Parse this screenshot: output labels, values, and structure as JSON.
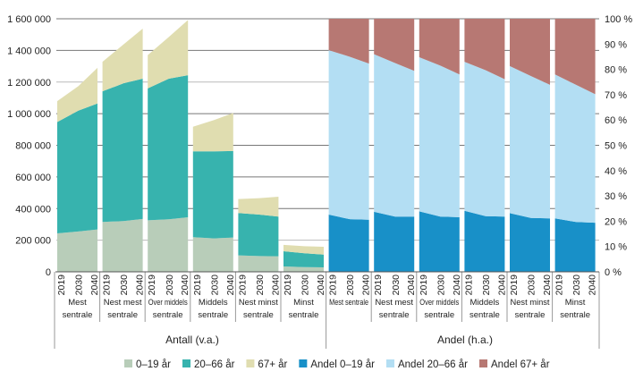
{
  "chart_data": {
    "type": "area",
    "years": [
      "2019",
      "2030",
      "2040"
    ],
    "groups": [
      "Mest sentrale",
      "Nest mest sentrale",
      "Over middels sentrale",
      "Middels sentrale",
      "Nest minst sentrale",
      "Minst sentrale"
    ],
    "group_label_lines": [
      [
        "Mest",
        "sentrale"
      ],
      [
        "Nest mest",
        "sentrale"
      ],
      [
        "Over middels",
        "sentrale"
      ],
      [
        "Middels",
        "sentrale"
      ],
      [
        "Nest minst",
        "sentrale"
      ],
      [
        "Minst",
        "sentrale"
      ]
    ],
    "group_label_lines_right": [
      [
        "Mest sentrale",
        ""
      ],
      [
        "Nest mest",
        "sentrale"
      ],
      [
        "Over middels",
        "sentrale"
      ],
      [
        "Middels",
        "sentrale"
      ],
      [
        "Nest minst",
        "sentrale"
      ],
      [
        "Minst",
        "sentrale"
      ]
    ],
    "panels": [
      {
        "label": "Antall (v.a.)",
        "axis": "left",
        "ylim": [
          0,
          1600000
        ],
        "yticks": [
          "0",
          "200 000",
          "400 000",
          "600 000",
          "800 000",
          "1 000 000",
          "1 200 000",
          "1 400 000",
          "1 600 000"
        ],
        "series": [
          {
            "name": "0–19 år",
            "color": "#b8cdb9",
            "values": [
              [
                243000,
                255000,
                268000
              ],
              [
                315000,
                321000,
                334000
              ],
              [
                326000,
                332000,
                345000
              ],
              [
                219000,
                211000,
                217000
              ],
              [
                104000,
                100000,
                98000
              ],
              [
                34000,
                30000,
                28000
              ]
            ]
          },
          {
            "name": "20–66 år",
            "color": "#37b3ae",
            "values": [
              [
                704000,
                764000,
                796000
              ],
              [
                826000,
                871000,
                887000
              ],
              [
                834000,
                889000,
                898000
              ],
              [
                543000,
                551000,
                547000
              ],
              [
                268000,
                262000,
                251000
              ],
              [
                96000,
                87000,
                81000
              ]
            ]
          },
          {
            "name": "67+ år",
            "color": "#e0ddb0",
            "values": [
              [
                132000,
                155000,
                226000
              ],
              [
                187000,
                246000,
                317000
              ],
              [
                210000,
                264000,
                349000
              ],
              [
                155000,
                198000,
                240000
              ],
              [
                88000,
                104000,
                126000
              ],
              [
                40000,
                45000,
                49000
              ]
            ]
          }
        ]
      },
      {
        "label": "Andel (h.a.)",
        "axis": "right",
        "ylim": [
          0,
          100
        ],
        "yticks": [
          "0 %",
          "10 %",
          "20 %",
          "30 %",
          "40 %",
          "50 %",
          "60 %",
          "70 %",
          "80 %",
          "90 %",
          "100 %"
        ],
        "series": [
          {
            "name": "Andel 0–19 år",
            "color": "#1890c8",
            "values": [
              [
                22.6,
                20.8,
                20.6
              ],
              [
                23.7,
                21.8,
                21.8
              ],
              [
                23.9,
                21.8,
                21.6
              ],
              [
                24.1,
                22.0,
                21.8
              ],
              [
                23.2,
                21.3,
                21.1
              ],
              [
                21.1,
                19.7,
                19.4
              ]
            ]
          },
          {
            "name": "Andel 20–66 år",
            "color": "#b3def3",
            "values": [
              [
                65.0,
                64.2,
                61.7
              ],
              [
                62.3,
                60.7,
                57.6
              ],
              [
                60.9,
                59.7,
                56.4
              ],
              [
                58.9,
                57.7,
                54.3
              ],
              [
                58.1,
                56.1,
                52.8
              ],
              [
                56.9,
                54.2,
                50.8
              ]
            ]
          },
          {
            "name": "Andel 67+ år",
            "color": "#b77873",
            "values": [
              [
                12.4,
                15.0,
                17.7
              ],
              [
                14.0,
                17.5,
                20.6
              ],
              [
                15.2,
                18.5,
                22.0
              ],
              [
                17.0,
                20.3,
                23.9
              ],
              [
                18.7,
                22.6,
                26.1
              ],
              [
                22.0,
                26.1,
                29.8
              ]
            ]
          }
        ]
      }
    ],
    "grid": true,
    "legend": "bottom"
  }
}
